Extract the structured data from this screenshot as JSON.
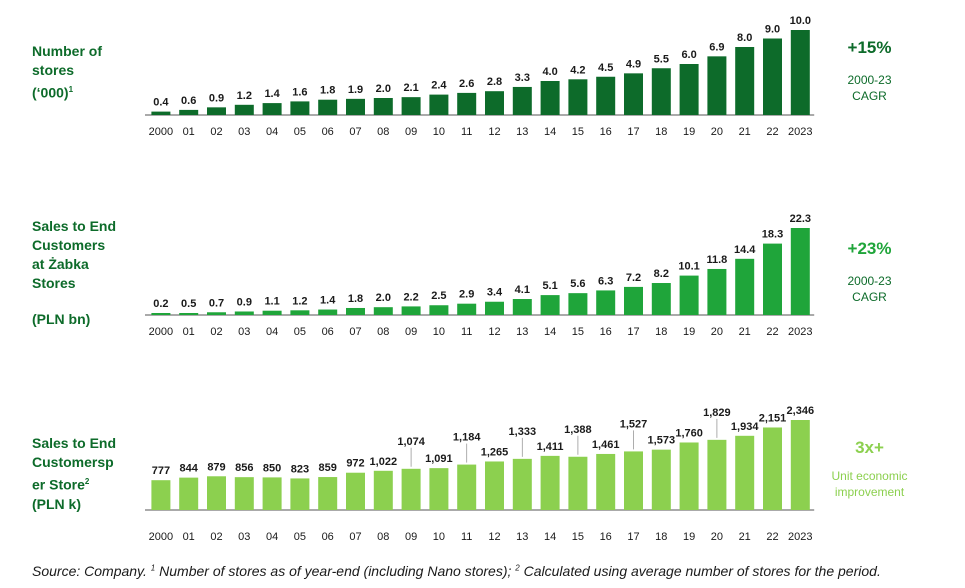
{
  "colors": {
    "dark_green": "#0d6b2a",
    "mid_green": "#1fa53a",
    "light_green": "#8cd04f",
    "text": "#1a1a1a"
  },
  "chart_data": [
    {
      "type": "bar",
      "title": "Number of stores (‘000)",
      "title_lines": [
        "Number of",
        "stores",
        "(‘000)"
      ],
      "title_sup": "1",
      "categories": [
        "2000",
        "01",
        "02",
        "03",
        "04",
        "05",
        "06",
        "07",
        "08",
        "09",
        "10",
        "11",
        "12",
        "13",
        "14",
        "15",
        "16",
        "17",
        "18",
        "19",
        "20",
        "21",
        "22",
        "2023"
      ],
      "values": [
        0.4,
        0.6,
        0.9,
        1.2,
        1.4,
        1.6,
        1.8,
        1.9,
        2.0,
        2.1,
        2.4,
        2.6,
        2.8,
        3.3,
        4.0,
        4.2,
        4.5,
        4.9,
        5.5,
        6.0,
        6.9,
        8.0,
        9.0,
        10.0
      ],
      "labels": [
        "0.4",
        "0.6",
        "0.9",
        "1.2",
        "1.4",
        "1.6",
        "1.8",
        "1.9",
        "2.0",
        "2.1",
        "2.4",
        "2.6",
        "2.8",
        "3.3",
        "4.0",
        "4.2",
        "4.5",
        "4.9",
        "5.5",
        "6.0",
        "6.9",
        "8.0",
        "9.0",
        "10.0"
      ],
      "color": "#0d6b2a",
      "ylim": [
        0,
        10
      ],
      "stat": {
        "value": "+15%",
        "note": "2000-23\nCAGR"
      }
    },
    {
      "type": "bar",
      "title": "Sales to End Customers at Żabka Stores",
      "title_lines": [
        "Sales to End",
        "Customers",
        "at Żabka",
        "Stores"
      ],
      "unit": "(PLN bn)",
      "categories": [
        "2000",
        "01",
        "02",
        "03",
        "04",
        "05",
        "06",
        "07",
        "08",
        "09",
        "10",
        "11",
        "12",
        "13",
        "14",
        "15",
        "16",
        "17",
        "18",
        "19",
        "20",
        "21",
        "22",
        "2023"
      ],
      "values": [
        0.2,
        0.5,
        0.7,
        0.9,
        1.1,
        1.2,
        1.4,
        1.8,
        2.0,
        2.2,
        2.5,
        2.9,
        3.4,
        4.1,
        5.1,
        5.6,
        6.3,
        7.2,
        8.2,
        10.1,
        11.8,
        14.4,
        18.3,
        22.3
      ],
      "labels": [
        "0.2",
        "0.5",
        "0.7",
        "0.9",
        "1.1",
        "1.2",
        "1.4",
        "1.8",
        "2.0",
        "2.2",
        "2.5",
        "2.9",
        "3.4",
        "4.1",
        "5.1",
        "5.6",
        "6.3",
        "7.2",
        "8.2",
        "10.1",
        "11.8",
        "14.4",
        "18.3",
        "22.3"
      ],
      "color": "#1fa53a",
      "ylim": [
        0,
        22.3
      ],
      "stat": {
        "value": "+23%",
        "note": "2000-23\nCAGR"
      }
    },
    {
      "type": "bar",
      "title": "Sales to End Customersper Store (PLN k)",
      "title_lines": [
        "Sales to End",
        "Customersp",
        "er Store"
      ],
      "title_sup": "2",
      "unit": "(PLN k)",
      "categories": [
        "2000",
        "01",
        "02",
        "03",
        "04",
        "05",
        "06",
        "07",
        "08",
        "09",
        "10",
        "11",
        "12",
        "13",
        "14",
        "15",
        "16",
        "17",
        "18",
        "19",
        "20",
        "21",
        "22",
        "2023"
      ],
      "values": [
        777,
        844,
        879,
        856,
        850,
        823,
        859,
        972,
        1022,
        1074,
        1091,
        1184,
        1265,
        1333,
        1411,
        1388,
        1461,
        1527,
        1573,
        1760,
        1829,
        1934,
        2151,
        2346
      ],
      "labels": [
        "777",
        "844",
        "879",
        "856",
        "850",
        "823",
        "859",
        "972",
        "1,022",
        "1,074",
        "1,091",
        "1,184",
        "1,265",
        "1,333",
        "1,411",
        "1,388",
        "1,461",
        "1,527",
        "1,573",
        "1,760",
        "1,829",
        "1,934",
        "2,151",
        "2,346"
      ],
      "color": "#8cd04f",
      "ylim": [
        0,
        2346
      ],
      "stat": {
        "value": "3x+",
        "note": "Unit economic\nimprovement"
      }
    }
  ],
  "footnote": {
    "source": "Source: Company. ",
    "sup1": "1",
    "note1": " Number of stores as of year-end (including Nano stores); ",
    "sup2": "2",
    "note2": " Calculated using average number of stores for the period."
  }
}
